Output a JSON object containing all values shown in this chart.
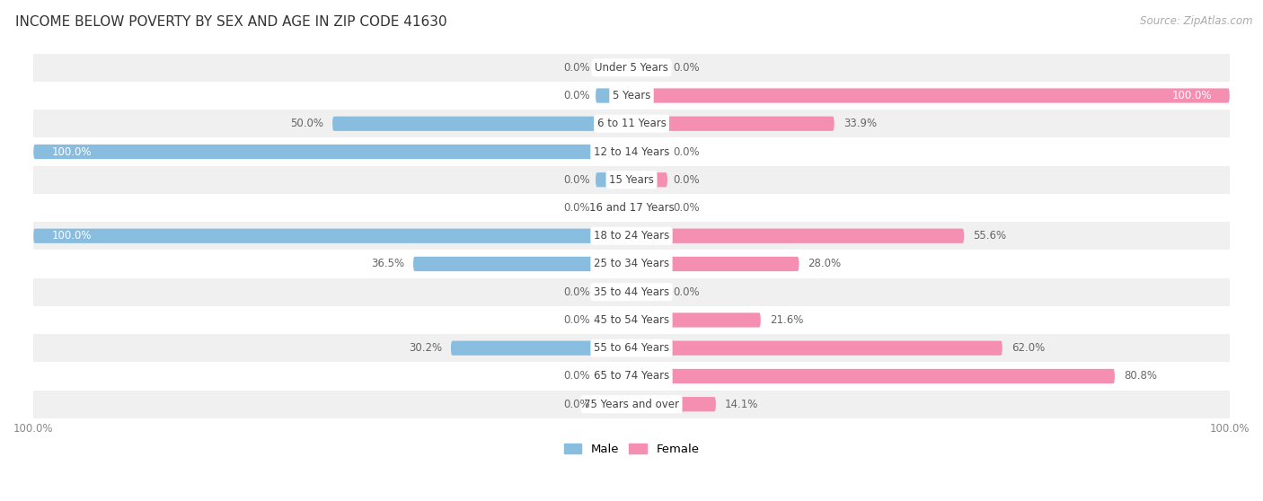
{
  "title": "INCOME BELOW POVERTY BY SEX AND AGE IN ZIP CODE 41630",
  "source": "Source: ZipAtlas.com",
  "categories": [
    "Under 5 Years",
    "5 Years",
    "6 to 11 Years",
    "12 to 14 Years",
    "15 Years",
    "16 and 17 Years",
    "18 to 24 Years",
    "25 to 34 Years",
    "35 to 44 Years",
    "45 to 54 Years",
    "55 to 64 Years",
    "65 to 74 Years",
    "75 Years and over"
  ],
  "male_values": [
    0.0,
    0.0,
    50.0,
    100.0,
    0.0,
    0.0,
    100.0,
    36.5,
    0.0,
    0.0,
    30.2,
    0.0,
    0.0
  ],
  "female_values": [
    0.0,
    100.0,
    33.9,
    0.0,
    0.0,
    0.0,
    55.6,
    28.0,
    0.0,
    21.6,
    62.0,
    80.8,
    14.1
  ],
  "male_color": "#88bde0",
  "female_color": "#f48fb1",
  "background_color": "#ffffff",
  "row_bg_light": "#f0f0f0",
  "row_bg_white": "#ffffff",
  "title_fontsize": 11,
  "source_fontsize": 8.5,
  "label_fontsize": 8.5,
  "category_fontsize": 8.5,
  "legend_fontsize": 9.5,
  "axis_label_fontsize": 8.5,
  "max_value": 100.0,
  "bar_height": 0.52
}
